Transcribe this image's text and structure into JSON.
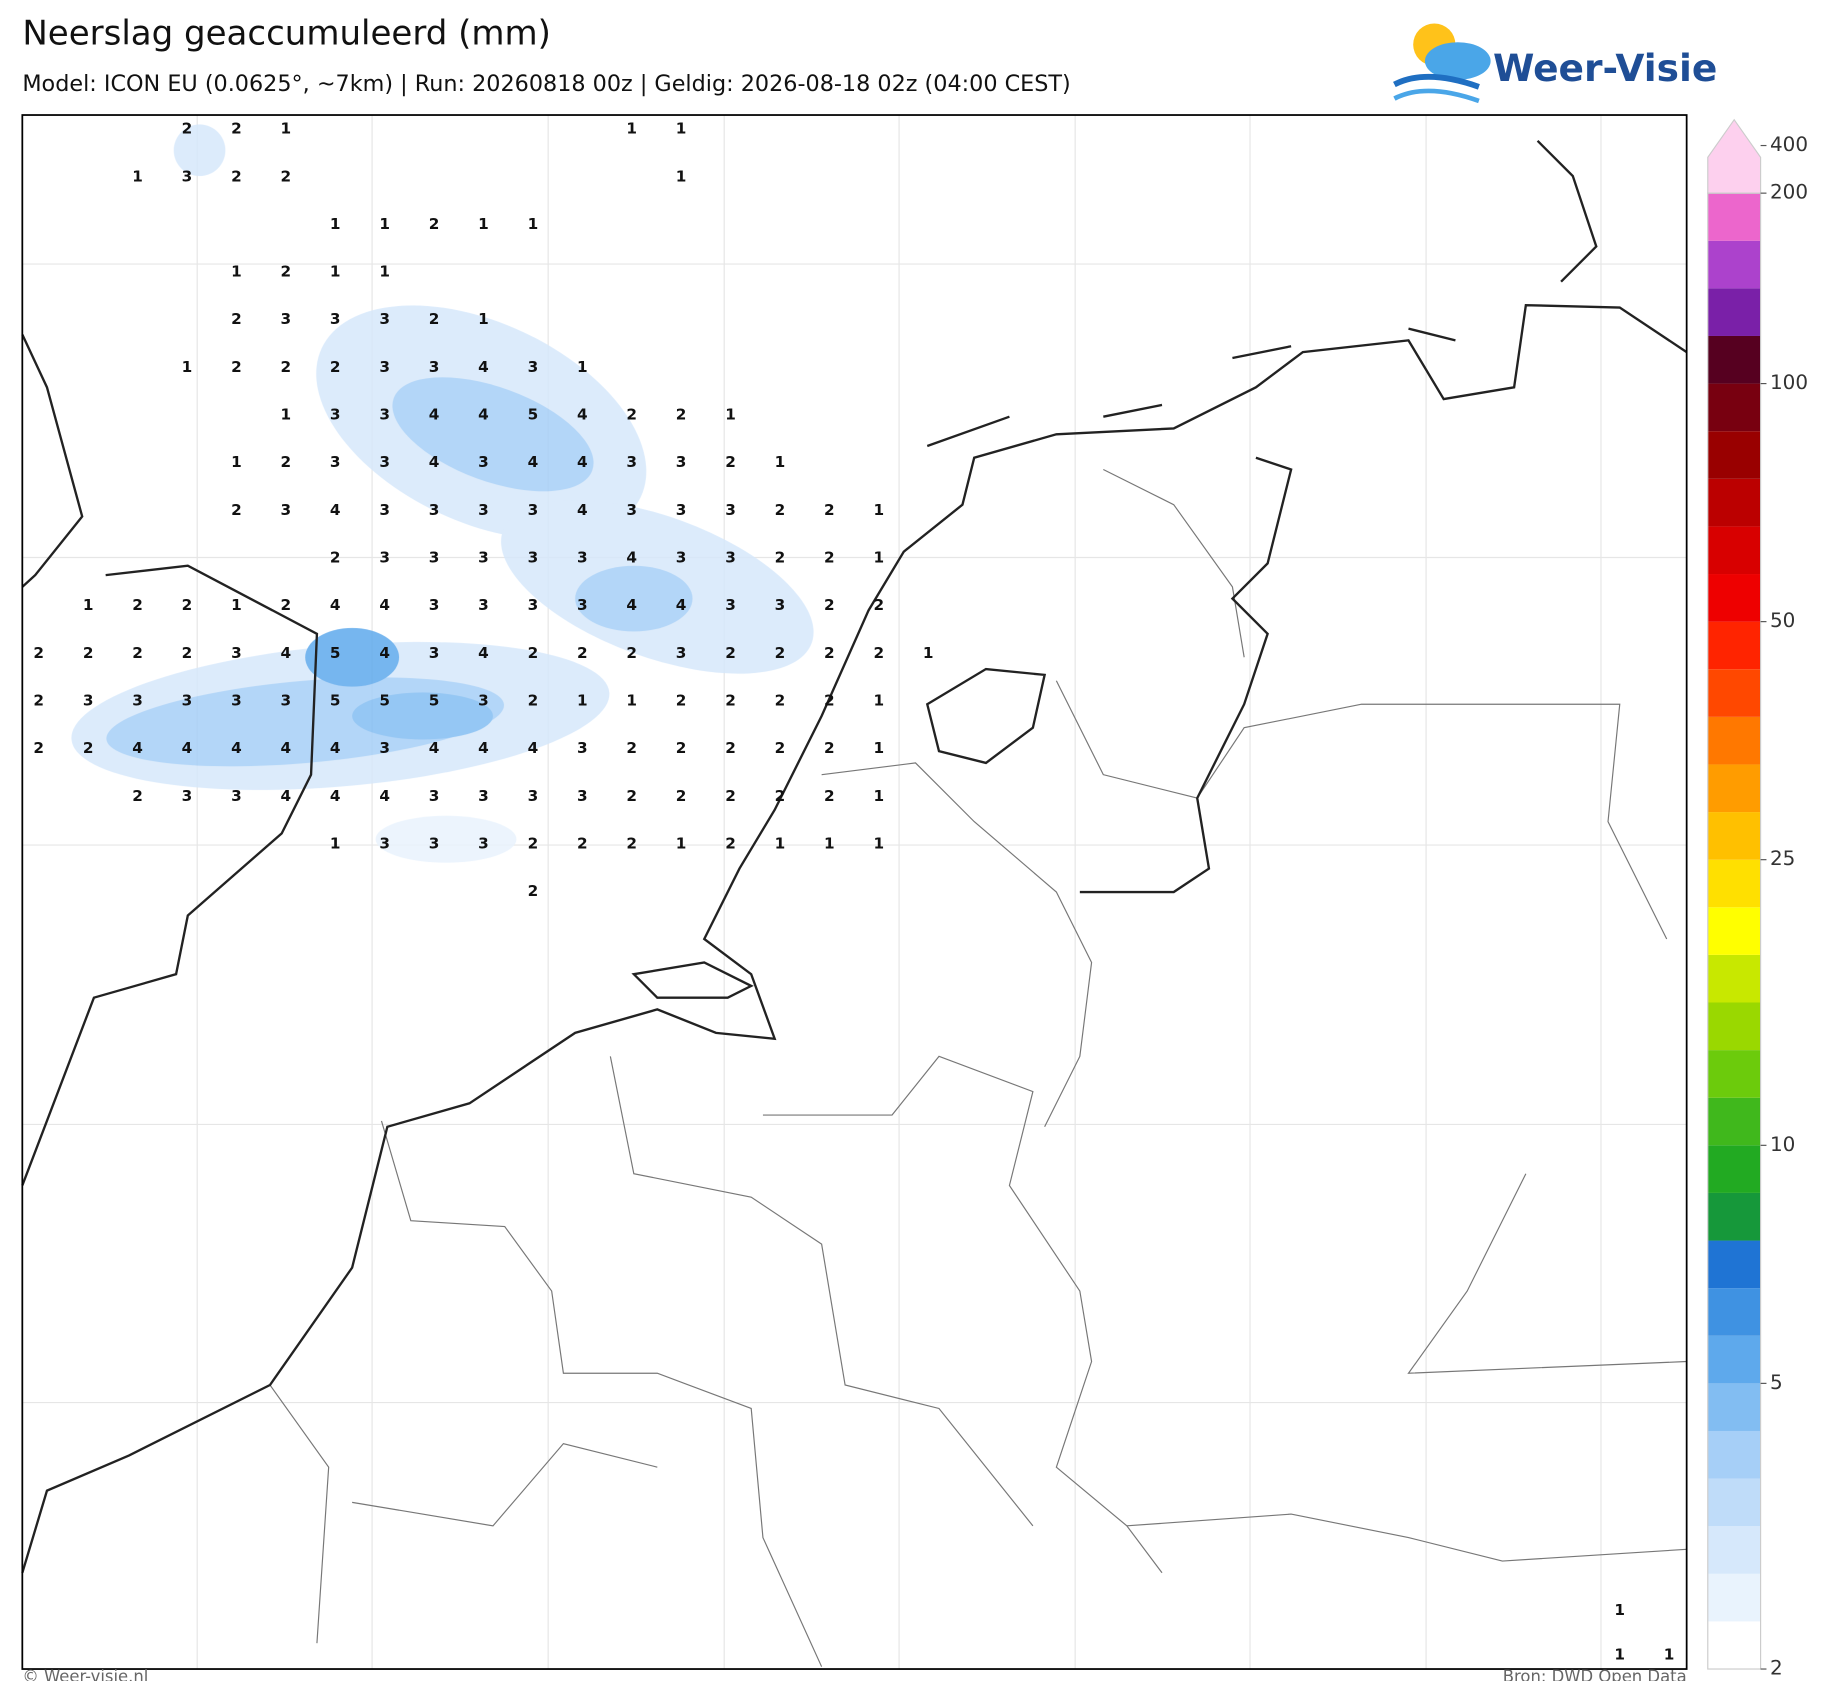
{
  "header": {
    "title": "Neerslag geaccumuleerd (mm)",
    "subtitle": "Model: ICON EU (0.0625°, ~7km)  |  Run: 20260818 00z  |  Geldig: 2026-08-18 02z (04:00 CEST)",
    "logo": "Weer-Visie"
  },
  "map": {
    "grid_values": [
      [
        null,
        null,
        null,
        2,
        2,
        1,
        null,
        null,
        null,
        null,
        null,
        null,
        1,
        1
      ],
      [
        null,
        null,
        1,
        3,
        2,
        2,
        null,
        null,
        null,
        null,
        null,
        null,
        null,
        1
      ],
      [
        null,
        null,
        null,
        null,
        null,
        null,
        1,
        1,
        2,
        1,
        1
      ],
      [
        null,
        null,
        null,
        null,
        1,
        2,
        1,
        1
      ],
      [
        null,
        null,
        null,
        null,
        2,
        3,
        3,
        3,
        2,
        1
      ],
      [
        null,
        null,
        null,
        1,
        2,
        2,
        2,
        3,
        3,
        4,
        3,
        1
      ],
      [
        null,
        null,
        null,
        null,
        null,
        1,
        3,
        3,
        4,
        4,
        5,
        4,
        2,
        2,
        1
      ],
      [
        null,
        null,
        null,
        null,
        1,
        2,
        3,
        3,
        4,
        3,
        4,
        4,
        3,
        3,
        2,
        1
      ],
      [
        null,
        null,
        null,
        null,
        2,
        3,
        4,
        3,
        3,
        3,
        3,
        4,
        3,
        3,
        3,
        2,
        2,
        1
      ],
      [
        null,
        null,
        null,
        null,
        null,
        null,
        2,
        3,
        3,
        3,
        3,
        3,
        4,
        3,
        3,
        2,
        2,
        1
      ],
      [
        null,
        1,
        2,
        2,
        1,
        2,
        4,
        4,
        3,
        3,
        3,
        3,
        4,
        4,
        3,
        3,
        2,
        2
      ],
      [
        2,
        2,
        2,
        2,
        3,
        4,
        5,
        4,
        3,
        4,
        2,
        2,
        2,
        3,
        2,
        2,
        2,
        2,
        1
      ],
      [
        2,
        3,
        3,
        3,
        3,
        3,
        5,
        5,
        5,
        3,
        2,
        1,
        1,
        2,
        2,
        2,
        2,
        1
      ],
      [
        2,
        2,
        4,
        4,
        4,
        4,
        4,
        3,
        4,
        4,
        4,
        3,
        2,
        2,
        2,
        2,
        2,
        1
      ],
      [
        null,
        null,
        2,
        3,
        3,
        4,
        4,
        4,
        3,
        3,
        3,
        3,
        2,
        2,
        2,
        2,
        2,
        1
      ],
      [
        null,
        null,
        null,
        null,
        null,
        null,
        1,
        3,
        3,
        3,
        2,
        2,
        2,
        1,
        2,
        1,
        1,
        1
      ],
      [
        null,
        null,
        null,
        null,
        null,
        null,
        null,
        null,
        null,
        null,
        2
      ]
    ],
    "grid_values_southeast": [
      [
        1,
        null
      ],
      [
        1,
        1
      ]
    ]
  },
  "colorbar": {
    "colors": [
      "#ffffff",
      "#e9f3fd",
      "#d6e8fb",
      "#bfdcf9",
      "#a6cff7",
      "#82bdf2",
      "#5ea9ec",
      "#3f92e2",
      "#1f74d4",
      "#16983a",
      "#22aa22",
      "#40b81c",
      "#6ccb0c",
      "#9ad800",
      "#c8e800",
      "#ffff00",
      "#ffe000",
      "#ffc000",
      "#ff9c00",
      "#ff7800",
      "#ff4800",
      "#ff2400",
      "#ee0000",
      "#d80000",
      "#bb0000",
      "#990000",
      "#780010",
      "#560020",
      "#7a20a8",
      "#ac42cc",
      "#ec66cc",
      "#fdd0ee"
    ],
    "ticks": [
      2,
      5,
      10,
      25,
      50,
      100,
      200,
      400
    ]
  },
  "footer": {
    "left": "© Weer-visie.nl",
    "right": "Bron: DWD Open Data"
  }
}
